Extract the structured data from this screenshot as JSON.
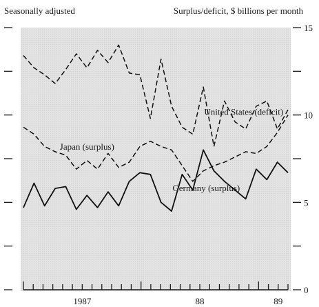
{
  "chart_data": {
    "type": "line",
    "subtitle_left": "Seasonally adjusted",
    "subtitle_right": "Surplus/deficit, $ billions per month",
    "x_tick_labels": [
      "1987",
      "88",
      "89"
    ],
    "ylim": [
      0,
      15
    ],
    "y_tick_labels": [
      "0",
      "5",
      "10",
      "15"
    ],
    "grid": false,
    "x_months": 28,
    "series": [
      {
        "name": "United States (deficit)",
        "style": "dashed",
        "values": [
          13.4,
          12.7,
          12.3,
          11.8,
          12.6,
          13.5,
          12.7,
          13.7,
          13.0,
          14.0,
          12.4,
          12.3,
          9.8,
          13.2,
          10.5,
          9.3,
          8.9,
          11.6,
          8.2,
          10.8,
          9.6,
          9.2,
          10.5,
          10.8,
          9.2,
          10.3
        ],
        "label_position_index": 15
      },
      {
        "name": "Japan (surplus)",
        "style": "dashed",
        "values": [
          9.3,
          8.9,
          8.2,
          7.9,
          7.7,
          6.9,
          7.4,
          6.9,
          7.8,
          7.0,
          7.3,
          8.2,
          8.5,
          8.2,
          8.0,
          7.1,
          6.2,
          6.8,
          7.1,
          7.3,
          7.6,
          7.9,
          7.8,
          8.2,
          9.0,
          10.0
        ],
        "label_position_index": 5
      },
      {
        "name": "Germany (surplus)",
        "style": "solid",
        "values": [
          4.7,
          6.1,
          4.8,
          5.8,
          5.9,
          4.6,
          5.4,
          4.7,
          5.6,
          4.8,
          6.2,
          6.7,
          6.6,
          5.0,
          4.5,
          6.6,
          5.7,
          8.0,
          6.8,
          6.2,
          5.7,
          5.2,
          6.9,
          6.3,
          7.3,
          6.7
        ],
        "label_position_index": 15
      }
    ]
  }
}
